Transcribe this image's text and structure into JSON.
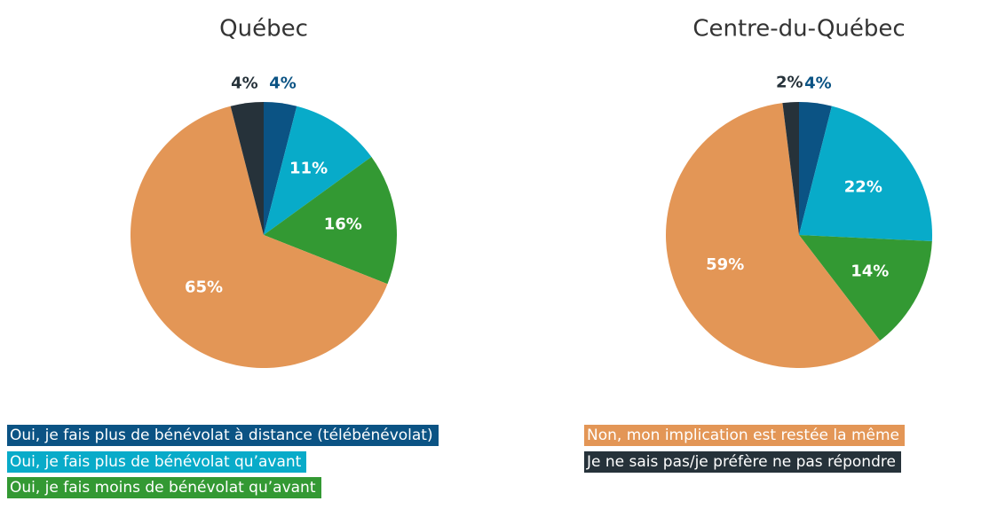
{
  "chart_data": [
    {
      "type": "pie",
      "title": "Québec",
      "values": [
        4,
        11,
        16,
        65,
        4
      ],
      "value_labels": [
        "4%",
        "11%",
        "16%",
        "65%",
        "4%"
      ]
    },
    {
      "type": "pie",
      "title": "Centre-du-Québec",
      "values": [
        4,
        22,
        14,
        59,
        2
      ],
      "value_labels": [
        "4%",
        "22%",
        "14%",
        "59%",
        "2%"
      ]
    }
  ],
  "legend": {
    "labels": [
      "Oui, je fais plus de bénévolat à distance (télébénévolat)",
      "Oui, je fais plus de bénévolat qu’avant",
      "Oui, je fais moins de bénévolat qu’avant",
      "Non, mon implication est restée la même",
      "Je ne sais pas/je préfère ne pas répondre"
    ],
    "colors": [
      "#0b5384",
      "#08abc9",
      "#339933",
      "#e39656",
      "#26323a"
    ]
  }
}
